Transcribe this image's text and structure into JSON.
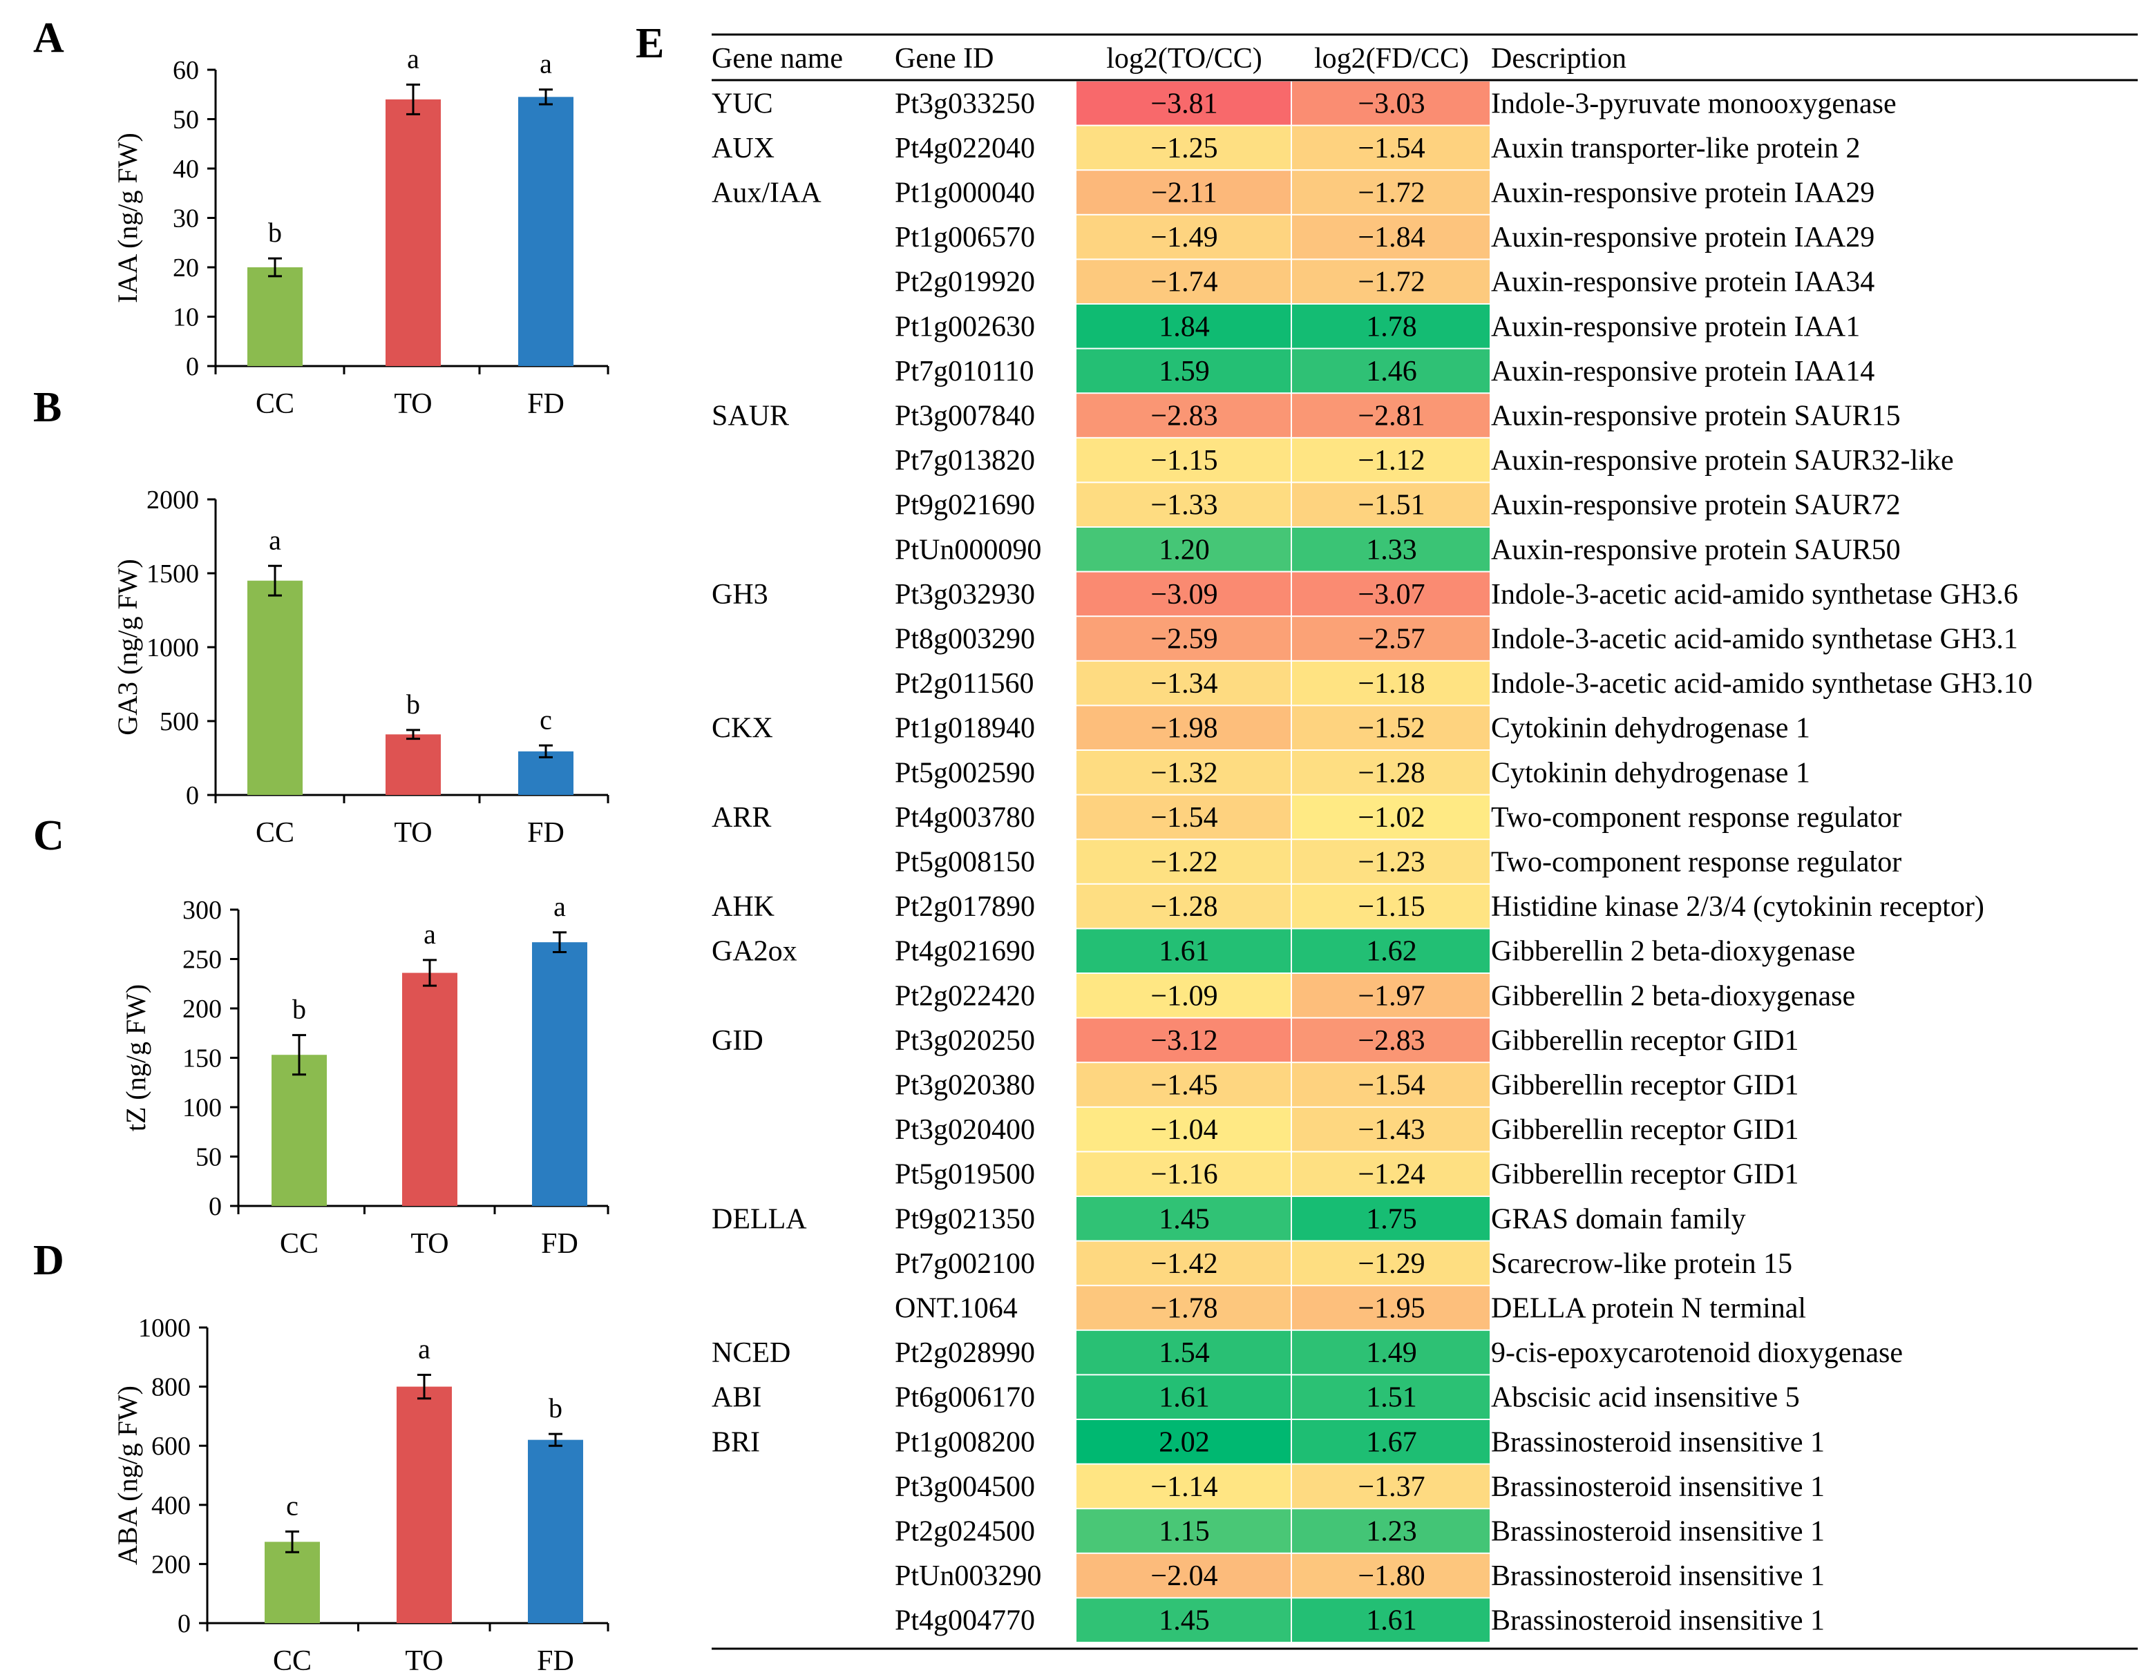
{
  "chart_data": [
    {
      "type": "bar",
      "panel": "A",
      "ylabel": "IAA (ng/g FW)",
      "ylim": [
        0,
        60
      ],
      "yticks": [
        0,
        10,
        20,
        30,
        40,
        50,
        60
      ],
      "categories": [
        "CC",
        "TO",
        "FD"
      ],
      "values": [
        20,
        54,
        54.5
      ],
      "errors": [
        1.8,
        3,
        1.5
      ],
      "significance": [
        "b",
        "a",
        "a"
      ],
      "colors": [
        "#8BBB4F",
        "#DE5352",
        "#2A7DC1"
      ]
    },
    {
      "type": "bar",
      "panel": "B",
      "ylabel": "GA3 (ng/g FW)",
      "ylim": [
        0,
        2000
      ],
      "yticks": [
        0,
        500,
        1000,
        1500,
        2000
      ],
      "categories": [
        "CC",
        "TO",
        "FD"
      ],
      "values": [
        1450,
        410,
        295
      ],
      "errors": [
        100,
        30,
        40
      ],
      "significance": [
        "a",
        "b",
        "c"
      ],
      "colors": [
        "#8BBB4F",
        "#DE5352",
        "#2A7DC1"
      ]
    },
    {
      "type": "bar",
      "panel": "C",
      "ylabel": "tZ (ng/g FW)",
      "ylim": [
        0,
        300
      ],
      "yticks": [
        0,
        50,
        100,
        150,
        200,
        250,
        300
      ],
      "categories": [
        "CC",
        "TO",
        "FD"
      ],
      "values": [
        153,
        236,
        267
      ],
      "errors": [
        20,
        13,
        10
      ],
      "significance": [
        "b",
        "a",
        "a"
      ],
      "colors": [
        "#8BBB4F",
        "#DE5352",
        "#2A7DC1"
      ]
    },
    {
      "type": "bar",
      "panel": "D",
      "ylabel": "ABA (ng/g FW)",
      "ylim": [
        0,
        1000
      ],
      "yticks": [
        0,
        200,
        400,
        600,
        800,
        1000
      ],
      "categories": [
        "CC",
        "TO",
        "FD"
      ],
      "values": [
        275,
        800,
        620
      ],
      "errors": [
        35,
        40,
        20
      ],
      "significance": [
        "c",
        "a",
        "b"
      ],
      "colors": [
        "#8BBB4F",
        "#DE5352",
        "#2A7DC1"
      ]
    },
    {
      "type": "table",
      "panel": "E",
      "columns": [
        "Gene name",
        "Gene ID",
        "log2(TO/CC)",
        "log2(FD/CC)",
        "Description"
      ],
      "rows": [
        [
          "YUC",
          "Pt3g033250",
          "−3.81",
          "−3.03",
          "Indole-3-pyruvate monooxygenase"
        ],
        [
          "AUX",
          "Pt4g022040",
          "−1.25",
          "−1.54",
          "Auxin transporter-like protein 2"
        ],
        [
          "Aux/IAA",
          "Pt1g000040",
          "−2.11",
          "−1.72",
          "Auxin-responsive protein IAA29"
        ],
        [
          "",
          "Pt1g006570",
          "−1.49",
          "−1.84",
          "Auxin-responsive protein IAA29"
        ],
        [
          "",
          "Pt2g019920",
          "−1.74",
          "−1.72",
          "Auxin-responsive protein IAA34"
        ],
        [
          "",
          "Pt1g002630",
          "1.84",
          "1.78",
          "Auxin-responsive protein IAA1"
        ],
        [
          "",
          "Pt7g010110",
          "1.59",
          "1.46",
          "Auxin-responsive protein IAA14"
        ],
        [
          "SAUR",
          "Pt3g007840",
          "−2.83",
          "−2.81",
          "Auxin-responsive protein SAUR15"
        ],
        [
          "",
          "Pt7g013820",
          "−1.15",
          "−1.12",
          "Auxin-responsive protein SAUR32-like"
        ],
        [
          "",
          "Pt9g021690",
          "−1.33",
          "−1.51",
          "Auxin-responsive protein SAUR72"
        ],
        [
          "",
          "PtUn000090",
          "1.20",
          "1.33",
          "Auxin-responsive protein SAUR50"
        ],
        [
          "GH3",
          "Pt3g032930",
          "−3.09",
          "−3.07",
          "Indole-3-acetic acid-amido synthetase GH3.6"
        ],
        [
          "",
          "Pt8g003290",
          "−2.59",
          "−2.57",
          "Indole-3-acetic acid-amido synthetase GH3.1"
        ],
        [
          "",
          "Pt2g011560",
          "−1.34",
          "−1.18",
          "Indole-3-acetic acid-amido synthetase GH3.10"
        ],
        [
          "CKX",
          "Pt1g018940",
          "−1.98",
          "−1.52",
          "Cytokinin dehydrogenase 1"
        ],
        [
          "",
          "Pt5g002590",
          "−1.32",
          "−1.28",
          "Cytokinin dehydrogenase 1"
        ],
        [
          "ARR",
          "Pt4g003780",
          "−1.54",
          "−1.02",
          "Two-component response regulator"
        ],
        [
          "",
          "Pt5g008150",
          "−1.22",
          "−1.23",
          "Two-component response regulator"
        ],
        [
          "AHK",
          "Pt2g017890",
          "−1.28",
          "−1.15",
          "Histidine kinase 2/3/4 (cytokinin receptor)"
        ],
        [
          "GA2ox",
          "Pt4g021690",
          "1.61",
          "1.62",
          "Gibberellin 2 beta-dioxygenase"
        ],
        [
          "",
          "Pt2g022420",
          "−1.09",
          "−1.97",
          "Gibberellin 2 beta-dioxygenase"
        ],
        [
          "GID",
          "Pt3g020250",
          "−3.12",
          "−2.83",
          "Gibberellin receptor GID1"
        ],
        [
          "",
          "Pt3g020380",
          "−1.45",
          "−1.54",
          "Gibberellin receptor GID1"
        ],
        [
          "",
          "Pt3g020400",
          "−1.04",
          "−1.43",
          "Gibberellin receptor GID1"
        ],
        [
          "",
          "Pt5g019500",
          "−1.16",
          "−1.24",
          "Gibberellin receptor GID1"
        ],
        [
          "DELLA",
          "Pt9g021350",
          "1.45",
          "1.75",
          "GRAS domain family"
        ],
        [
          "",
          "Pt7g002100",
          "−1.42",
          "−1.29",
          "Scarecrow-like protein 15"
        ],
        [
          "",
          "ONT.1064",
          "−1.78",
          "−1.95",
          "DELLA protein N terminal"
        ],
        [
          "NCED",
          "Pt2g028990",
          "1.54",
          "1.49",
          "9-cis-epoxycarotenoid dioxygenase"
        ],
        [
          "ABI",
          "Pt6g006170",
          "1.61",
          "1.51",
          "Abscisic acid insensitive 5"
        ],
        [
          "BRI",
          "Pt1g008200",
          "2.02",
          "1.67",
          "Brassinosteroid insensitive 1"
        ],
        [
          "",
          "Pt3g004500",
          "−1.14",
          "−1.37",
          "Brassinosteroid insensitive 1"
        ],
        [
          "",
          "Pt2g024500",
          "1.15",
          "1.23",
          "Brassinosteroid insensitive 1"
        ],
        [
          "",
          "PtUn003290",
          "−2.04",
          "−1.80",
          "Brassinosteroid insensitive 1"
        ],
        [
          "",
          "Pt4g004770",
          "1.45",
          "1.61",
          "Brassinosteroid insensitive 1"
        ]
      ],
      "color_scale": {
        "min": -3.81,
        "mid": -1.0,
        "max": 2.02,
        "low_color": "#F8696B",
        "mid_color": "#FFEB84",
        "high_color": "#00B871"
      }
    }
  ]
}
